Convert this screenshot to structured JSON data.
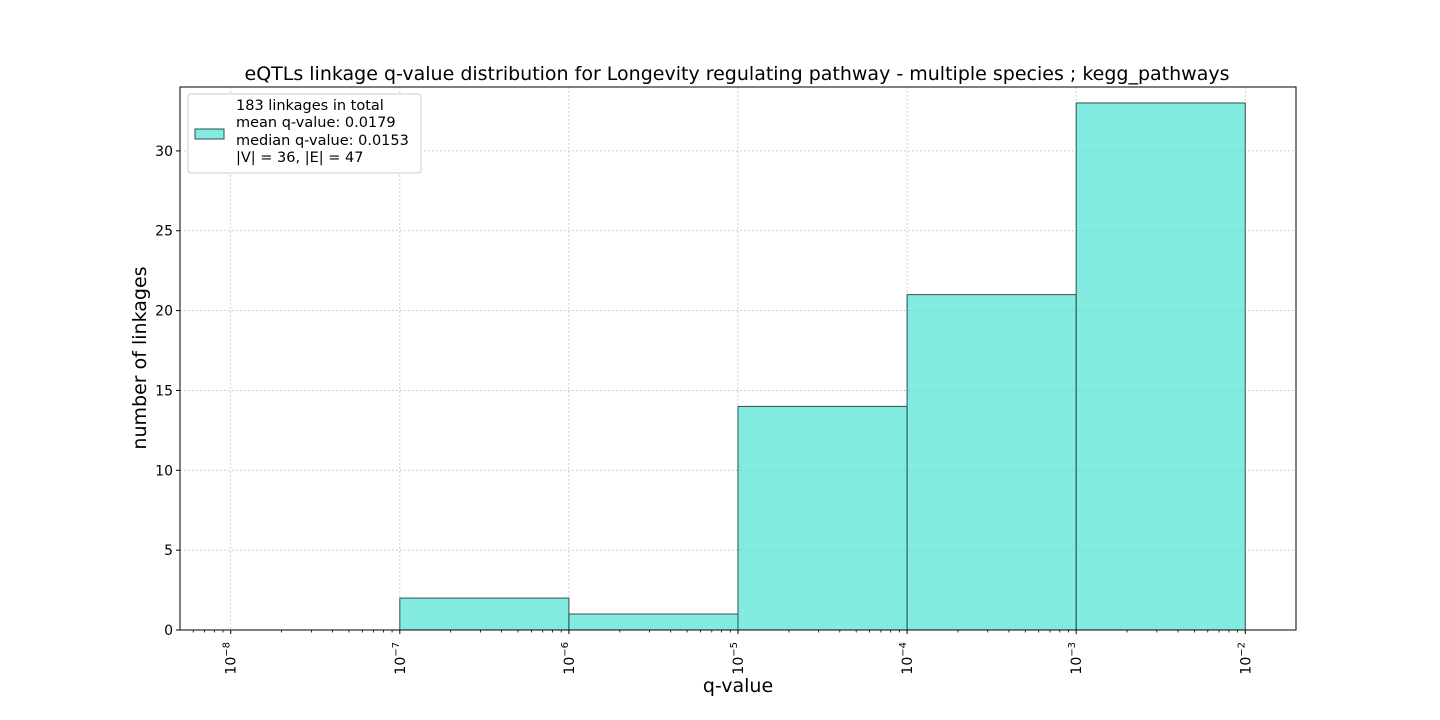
{
  "chart_data": {
    "type": "bar",
    "title": "eQTLs linkage q-value distribution for Longevity regulating pathway - multiple species ; kegg_pathways",
    "xlabel": "q-value",
    "ylabel": "number of linkages",
    "x_scale": "log",
    "xlim": [
      1e-08,
      0.01
    ],
    "ylim": [
      0,
      34
    ],
    "grid": true,
    "x_ticks": [
      {
        "exp": -8,
        "label": "10"
      },
      {
        "exp": -7,
        "label": "10"
      },
      {
        "exp": -6,
        "label": "10"
      },
      {
        "exp": -5,
        "label": "10"
      },
      {
        "exp": -4,
        "label": "10"
      },
      {
        "exp": -3,
        "label": "10"
      },
      {
        "exp": -2,
        "label": "10"
      }
    ],
    "x_tick_exponents": [
      "−8",
      "−7",
      "−6",
      "−5",
      "−4",
      "−3",
      "−2"
    ],
    "y_ticks": [
      0,
      5,
      10,
      15,
      20,
      25,
      30
    ],
    "bins": [
      {
        "x0": 1e-07,
        "x1": 1e-06,
        "value": 2
      },
      {
        "x0": 1e-06,
        "x1": 1e-05,
        "value": 1
      },
      {
        "x0": 1e-05,
        "x1": 0.0001,
        "value": 14
      },
      {
        "x0": 0.0001,
        "x1": 0.001,
        "value": 21
      },
      {
        "x0": 0.001,
        "x1": 0.01,
        "value": 33
      }
    ],
    "bar_color": "#40e0d0",
    "legend": {
      "position": "upper-left",
      "lines": [
        "183 linkages in total",
        "mean q-value: 0.0179",
        "median q-value: 0.0153",
        "|V| = 36, |E| = 47"
      ]
    }
  }
}
